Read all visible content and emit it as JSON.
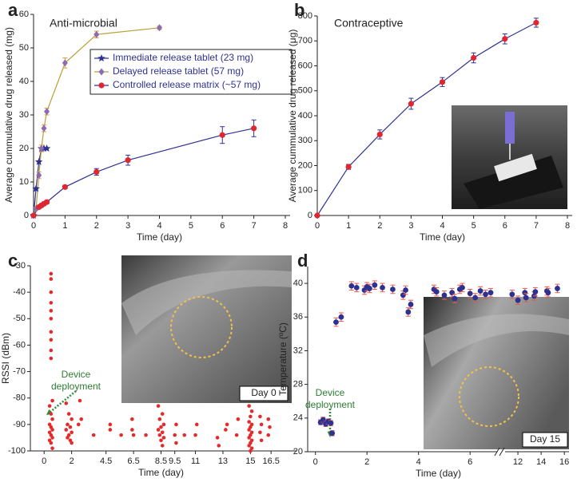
{
  "chart_data": [
    {
      "type": "line",
      "label": "a",
      "title": "Anti-microbial",
      "x_label": "Time (day)",
      "y_label": "Average cummulative drug released (mg)",
      "xlim": [
        0,
        8
      ],
      "xticks": [
        0,
        1,
        2,
        3,
        4,
        5,
        6,
        7,
        8
      ],
      "ylim": [
        0,
        60
      ],
      "yticks": [
        0,
        10,
        20,
        30,
        40,
        50,
        60
      ],
      "legend": "upper right",
      "series": [
        {
          "name": "Immediate release tablet (23 mg)",
          "color": "#2e3192",
          "marker": "star",
          "marker_color": "#2e3192",
          "x": [
            0,
            0.08,
            0.17,
            0.25,
            0.33,
            0.42
          ],
          "values": [
            0,
            8,
            16,
            20,
            20,
            20
          ]
        },
        {
          "name": "Delayed release tablet (57 mg)",
          "color": "#b8a038",
          "marker": "diamond",
          "marker_color": "#8b6bb1",
          "error_color": "#e8963c",
          "x": [
            0,
            0.08,
            0.17,
            0.25,
            0.33,
            0.42,
            1,
            2,
            4
          ],
          "values": [
            0,
            2,
            12,
            20,
            26,
            31,
            45.5,
            54,
            56
          ],
          "errors": [
            0,
            0.5,
            1,
            1,
            1,
            1,
            1.5,
            1,
            0.5
          ]
        },
        {
          "name": "Controlled release matrix (~57 mg)",
          "color": "#2e3192",
          "marker": "circle",
          "marker_color": "#e0262e",
          "error_color": "#2e3192",
          "x": [
            0,
            0.17,
            0.25,
            0.33,
            0.42,
            1,
            2,
            3,
            6,
            7
          ],
          "values": [
            0,
            2.5,
            3,
            3.5,
            4,
            8.5,
            13,
            16.5,
            24,
            26
          ],
          "errors": [
            0,
            0.5,
            0.5,
            0.5,
            0.5,
            0.5,
            1,
            1.5,
            2.5,
            2.5
          ]
        }
      ]
    },
    {
      "type": "line",
      "label": "b",
      "title": "Contraceptive",
      "x_label": "Time (day)",
      "y_label": "Average cummulative drug released (μg)",
      "xlim": [
        0,
        8
      ],
      "xticks": [
        0,
        1,
        2,
        3,
        4,
        5,
        6,
        7,
        8
      ],
      "ylim": [
        0,
        800
      ],
      "yticks": [
        0,
        100,
        200,
        300,
        400,
        500,
        600,
        700,
        800
      ],
      "series": [
        {
          "color": "#2e3192",
          "marker": "circle",
          "marker_color": "#e0262e",
          "error_color": "#2e3192",
          "x": [
            0,
            1,
            2,
            3,
            4,
            5,
            6,
            7
          ],
          "values": [
            0,
            195,
            325,
            448,
            535,
            632,
            708,
            773
          ],
          "errors": [
            0,
            10,
            18,
            22,
            18,
            20,
            20,
            18
          ]
        }
      ]
    },
    {
      "type": "scatter",
      "label": "c",
      "x_label": "Time (day)",
      "y_label": "RSSI (dBm)",
      "annotation": [
        "Device",
        "deployment"
      ],
      "inset_label": "Day 0",
      "xlim": [
        -1,
        18
      ],
      "xticks": [
        0,
        2,
        4.5,
        6.5,
        8.5,
        9.5,
        11,
        13,
        15,
        16.5
      ],
      "ylim": [
        -100,
        -30
      ],
      "yticks": [
        -100,
        -90,
        -80,
        -70,
        -60,
        -50,
        -40,
        -30
      ],
      "color": "#e32b2b",
      "x": [
        0.5,
        0.5,
        0.5,
        0.5,
        0.5,
        0.5,
        0.5,
        0.5,
        0.5,
        0.5,
        0.6,
        0.4,
        0.5,
        0.6,
        0.4,
        0.5,
        0.6,
        0.4,
        0.5,
        0.6,
        0.4,
        0.5,
        0.6,
        1.6,
        1.8,
        2.0,
        1.7,
        1.9,
        1.6,
        2.0,
        1.8,
        1.7,
        1.9,
        2.0,
        2.6,
        2.7,
        2.5,
        3.6,
        4.8,
        4.8,
        5.6,
        6.4,
        6.4,
        6.5,
        7.4,
        8.3,
        8.6,
        8.4,
        8.7,
        8.5,
        8.3,
        8.6,
        8.4,
        8.7,
        8.5,
        8.6,
        9.6,
        9.5,
        9.6,
        10.2,
        11.1,
        11.0,
        12.6,
        12.7,
        13.3,
        13.2,
        14.1,
        14.0,
        14.9,
        15.1,
        15.0,
        14.9,
        15.1,
        15.0,
        14.9,
        15.1,
        15.0,
        14.9,
        15.1,
        15.0,
        14.9,
        15.1,
        15.0,
        15.7,
        15.8,
        15.7,
        15.8,
        16.3,
        16.4,
        16.3
      ],
      "values": [
        -33,
        -35,
        -40,
        -44,
        -47,
        -50,
        -55,
        -58,
        -62,
        -65,
        -81,
        -83,
        -86,
        -88,
        -90,
        -91,
        -92,
        -93,
        -94,
        -95,
        -96,
        -97,
        -99,
        -82,
        -86,
        -88,
        -90,
        -91,
        -92,
        -93,
        -94,
        -95,
        -96,
        -97,
        -81,
        -88,
        -90,
        -94,
        -90,
        -92,
        -94,
        -88,
        -92,
        -94,
        -94,
        -83,
        -86,
        -88,
        -90,
        -91,
        -92,
        -93,
        -94,
        -95,
        -96,
        -98,
        -90,
        -94,
        -97,
        -94,
        -90,
        -94,
        -95,
        -98,
        -90,
        -92,
        -88,
        -94,
        -83,
        -85,
        -87,
        -89,
        -90,
        -91,
        -92,
        -93,
        -94,
        -95,
        -96,
        -97,
        -98,
        -99,
        -100,
        -87,
        -90,
        -93,
        -96,
        -88,
        -91,
        -94
      ]
    },
    {
      "type": "scatter",
      "label": "d",
      "x_label": "Time (day)",
      "y_label": "Temperature (ºC)",
      "annotation": [
        "Device",
        "deployment"
      ],
      "inset_label": "Day 15",
      "xlim": [
        -0.3,
        16.4
      ],
      "xbreak": [
        7,
        11
      ],
      "xticks": [
        0,
        2,
        4,
        6,
        12,
        14,
        16
      ],
      "ylim": [
        20,
        42
      ],
      "yticks": [
        20,
        24,
        28,
        32,
        36,
        40
      ],
      "color": "#2e3192",
      "error_color": "#e55a4a",
      "x": [
        0.2,
        0.3,
        0.4,
        0.5,
        0.6,
        0.65,
        0.8,
        1.0,
        1.4,
        1.6,
        1.9,
        2.0,
        2.1,
        2.3,
        2.6,
        3.0,
        3.4,
        3.5,
        3.6,
        3.7,
        4.6,
        4.7,
        5.0,
        5.3,
        5.4,
        5.6,
        5.7,
        6.0,
        6.2,
        6.4,
        6.6,
        6.8,
        11.5,
        12.0,
        12.6,
        12.7,
        13.4,
        13.5,
        14.5,
        14.6,
        15.4
      ],
      "values": [
        23.5,
        23.8,
        23.3,
        23.6,
        23.4,
        22.2,
        35.4,
        36.0,
        39.7,
        39.5,
        39.2,
        39.6,
        39.4,
        39.8,
        39.5,
        39.3,
        38.6,
        39.2,
        36.6,
        37.5,
        39.3,
        39.0,
        38.6,
        38.9,
        38.2,
        39.3,
        39.5,
        38.8,
        38.3,
        39.1,
        38.7,
        38.9,
        38.7,
        38.0,
        38.9,
        38.3,
        38.5,
        39.0,
        39.1,
        38.9,
        39.4
      ],
      "errors": [
        0.3,
        0.3,
        0.3,
        0.3,
        0.3,
        0.3,
        0.5,
        0.5,
        0.5,
        0.5,
        0.5,
        0.5,
        0.5,
        0.5,
        0.5,
        0.5,
        0.5,
        0.5,
        0.5,
        0.5,
        0.5,
        0.5,
        0.5,
        0.5,
        0.5,
        0.5,
        0.5,
        0.5,
        0.5,
        0.5,
        0.5,
        0.5,
        0.5,
        0.5,
        0.5,
        0.5,
        0.5,
        0.5,
        0.5,
        0.5,
        0.5
      ]
    }
  ]
}
